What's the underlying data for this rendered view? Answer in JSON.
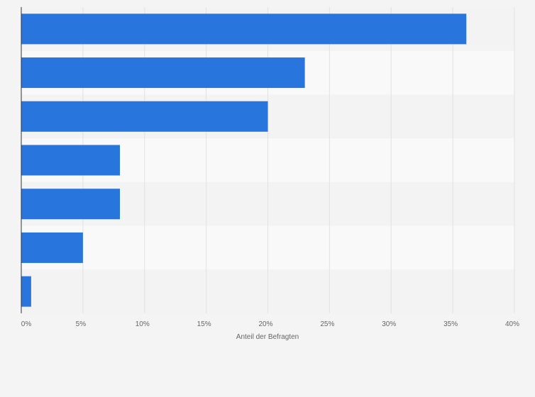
{
  "chart_data": {
    "type": "bar",
    "orientation": "horizontal",
    "categories": [
      "",
      "",
      "",
      "",
      "",
      "",
      ""
    ],
    "values": [
      36.1,
      23,
      20,
      8,
      8,
      5,
      0.8
    ],
    "xlabel": "Anteil der Befragten",
    "ylabel": "",
    "xlim": [
      0,
      40
    ],
    "xticks": [
      {
        "value": 0,
        "label": "0%"
      },
      {
        "value": 5,
        "label": "5%"
      },
      {
        "value": 10,
        "label": "10%"
      },
      {
        "value": 15,
        "label": "15%"
      },
      {
        "value": 20,
        "label": "20%"
      },
      {
        "value": 25,
        "label": "25%"
      },
      {
        "value": 30,
        "label": "30%"
      },
      {
        "value": 35,
        "label": "35%"
      },
      {
        "value": 40,
        "label": "40%"
      }
    ],
    "grid": true,
    "legend": "none"
  },
  "colors": {
    "bar": "#2876dd",
    "background": "#f4f4f4",
    "band_light": "#f9f9f9",
    "band_dark": "#f3f3f3",
    "grid": "#e2e2e2",
    "axis": "#333333",
    "text": "#666666"
  }
}
